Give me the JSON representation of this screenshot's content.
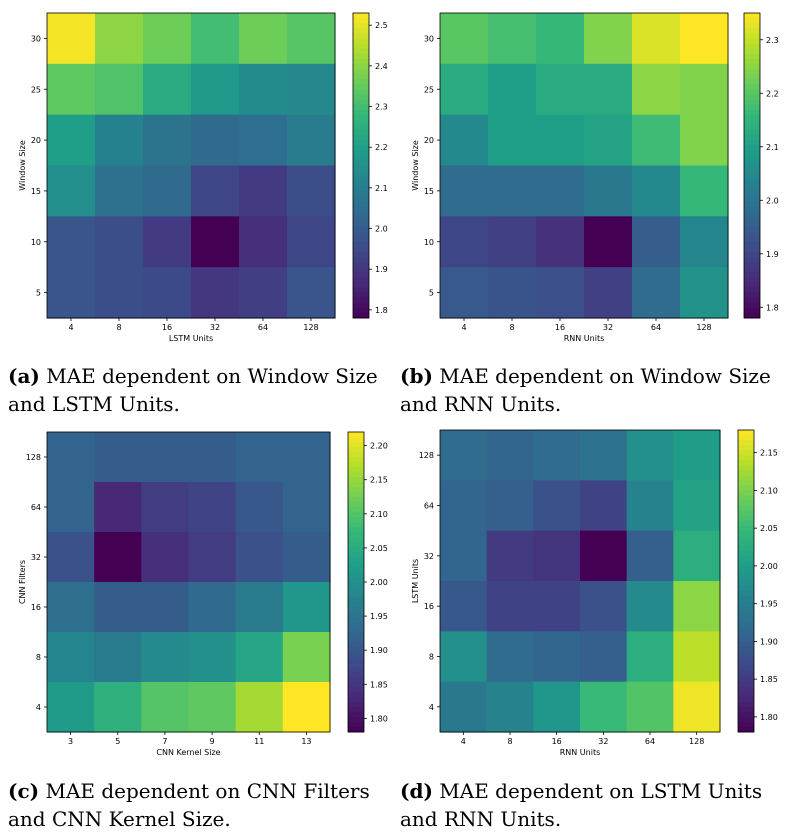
{
  "colormap": [
    "#440154",
    "#482878",
    "#3e4989",
    "#31688e",
    "#26828e",
    "#1f9e89",
    "#35b779",
    "#6ece58",
    "#b5de2b",
    "#fde725"
  ],
  "chart_data": [
    {
      "type": "heatmap",
      "caption_tag": "(a)",
      "caption_text": "MAE dependent on Window Size and LSTM Units.",
      "xlabel": "LSTM Units",
      "ylabel": "Window Size",
      "x_ticks": [
        "4",
        "8",
        "16",
        "32",
        "64",
        "128"
      ],
      "y_ticks": [
        "30",
        "25",
        "20",
        "15",
        "10",
        "5"
      ],
      "values": [
        [
          2.52,
          2.4,
          2.36,
          2.3,
          2.36,
          2.33
        ],
        [
          2.34,
          2.32,
          2.24,
          2.18,
          2.14,
          2.13
        ],
        [
          2.2,
          2.11,
          2.07,
          2.04,
          2.05,
          2.09
        ],
        [
          2.15,
          2.06,
          2.04,
          1.94,
          1.91,
          1.96
        ],
        [
          1.98,
          1.96,
          1.91,
          1.78,
          1.88,
          1.94
        ],
        [
          1.98,
          1.96,
          1.95,
          1.9,
          1.92,
          1.98
        ]
      ],
      "colorbar_ticks": [
        "2.5",
        "2.4",
        "2.3",
        "2.2",
        "2.1",
        "2.0",
        "1.9",
        "1.8"
      ],
      "vmin": 1.78,
      "vmax": 2.53
    },
    {
      "type": "heatmap",
      "caption_tag": "(b)",
      "caption_text": "MAE dependent on Window Size and RNN Units.",
      "xlabel": "RNN Units",
      "ylabel": "Window Size",
      "x_ticks": [
        "4",
        "8",
        "16",
        "32",
        "64",
        "128"
      ],
      "y_ticks": [
        "30",
        "25",
        "20",
        "15",
        "10",
        "5"
      ],
      "values": [
        [
          2.2,
          2.18,
          2.16,
          2.24,
          2.32,
          2.35
        ],
        [
          2.13,
          2.1,
          2.13,
          2.13,
          2.25,
          2.24
        ],
        [
          2.05,
          2.1,
          2.1,
          2.11,
          2.17,
          2.24
        ],
        [
          1.98,
          1.98,
          1.98,
          2.01,
          2.05,
          2.16
        ],
        [
          1.9,
          1.89,
          1.86,
          1.78,
          1.95,
          2.04
        ],
        [
          1.94,
          1.93,
          1.92,
          1.89,
          1.98,
          2.07
        ]
      ],
      "colorbar_ticks": [
        "2.3",
        "2.2",
        "2.1",
        "2.0",
        "1.9",
        "1.8"
      ],
      "vmin": 1.78,
      "vmax": 2.35
    },
    {
      "type": "heatmap",
      "caption_tag": "(c)",
      "caption_text": "MAE dependent on CNN Filters and CNN Kernel Size.",
      "xlabel": "CNN Kernel Size",
      "ylabel": "CNN Filters",
      "x_ticks": [
        "3",
        "5",
        "7",
        "9",
        "11",
        "13"
      ],
      "y_ticks": [
        "128",
        "64",
        "32",
        "16",
        "8",
        "4"
      ],
      "values": [
        [
          1.92,
          1.91,
          1.91,
          1.91,
          1.92,
          1.92
        ],
        [
          1.92,
          1.83,
          1.86,
          1.87,
          1.9,
          1.92
        ],
        [
          1.89,
          1.78,
          1.84,
          1.86,
          1.89,
          1.91
        ],
        [
          1.94,
          1.91,
          1.91,
          1.93,
          1.96,
          2.01
        ],
        [
          1.98,
          1.96,
          1.99,
          2.0,
          2.04,
          2.13
        ],
        [
          2.02,
          2.06,
          2.1,
          2.11,
          2.16,
          2.22
        ]
      ],
      "colorbar_ticks": [
        "2.20",
        "2.15",
        "2.10",
        "2.05",
        "2.00",
        "1.95",
        "1.90",
        "1.85",
        "1.80"
      ],
      "vmin": 1.78,
      "vmax": 2.22
    },
    {
      "type": "heatmap",
      "caption_tag": "(d)",
      "caption_text": "MAE dependent on LSTM Units and RNN Units.",
      "xlabel": "RNN Units",
      "ylabel": "LSTM Units",
      "x_ticks": [
        "4",
        "8",
        "16",
        "32",
        "64",
        "128"
      ],
      "y_ticks": [
        "128",
        "64",
        "32",
        "16",
        "8",
        "4"
      ],
      "values": [
        [
          1.92,
          1.91,
          1.92,
          1.93,
          1.98,
          2.0
        ],
        [
          1.91,
          1.9,
          1.88,
          1.86,
          1.96,
          2.01
        ],
        [
          1.91,
          1.85,
          1.84,
          1.78,
          1.9,
          2.03
        ],
        [
          1.89,
          1.86,
          1.86,
          1.88,
          1.97,
          2.11
        ],
        [
          1.98,
          1.92,
          1.91,
          1.9,
          2.03,
          2.14
        ],
        [
          1.94,
          1.96,
          1.99,
          2.05,
          2.07,
          2.17
        ]
      ],
      "colorbar_ticks": [
        "2.15",
        "2.10",
        "2.05",
        "2.00",
        "1.95",
        "1.90",
        "1.85",
        "1.80"
      ],
      "vmin": 1.78,
      "vmax": 2.18
    }
  ]
}
